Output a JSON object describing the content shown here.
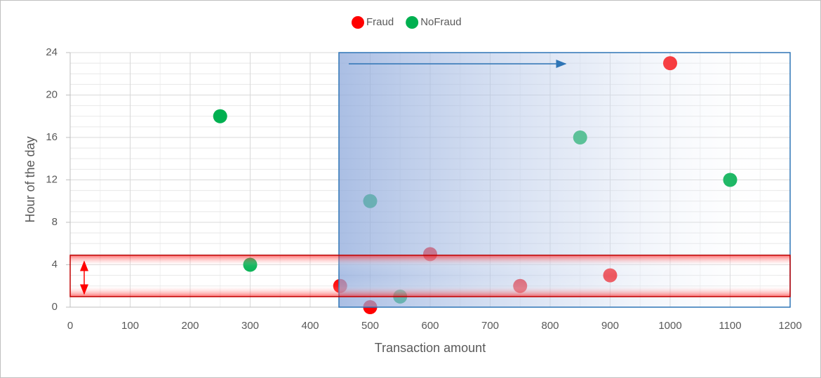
{
  "chart_data": {
    "type": "scatter",
    "x_label": "Transaction amount",
    "y_label": "Hour of the day",
    "series": [
      {
        "name": "Fraud",
        "color": "#ff0000",
        "x": [
          450,
          500,
          600,
          750,
          900,
          1000
        ],
        "values": [
          2,
          0,
          5,
          2,
          3,
          23
        ]
      },
      {
        "name": "NoFraud",
        "color": "#00b050",
        "x": [
          250,
          300,
          500,
          550,
          850,
          1100
        ],
        "values": [
          18,
          4,
          10,
          1,
          16,
          12
        ]
      }
    ],
    "xlim": [
      0,
      1200
    ],
    "xticks": [
      0,
      100,
      200,
      300,
      400,
      500,
      600,
      700,
      800,
      900,
      1000,
      1100,
      1200
    ],
    "ylim": [
      0,
      24
    ],
    "yticks": [
      0,
      4,
      8,
      12,
      16,
      20,
      24
    ],
    "grid": true,
    "legend": "top"
  }
}
